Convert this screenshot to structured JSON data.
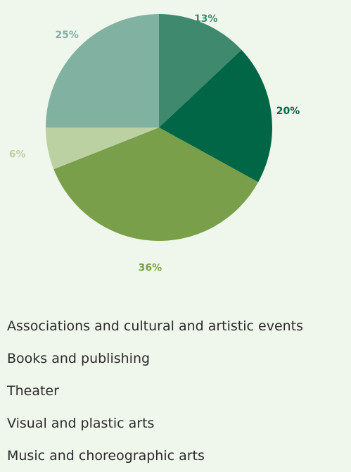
{
  "chart_data": {
    "type": "pie",
    "title": "",
    "slices": [
      {
        "label": "Associations and cultural and artistic events",
        "value": 13,
        "display": "13%",
        "color": "#3f8a6f"
      },
      {
        "label": "Books and publishing",
        "value": 20,
        "display": "20%",
        "color": "#006645"
      },
      {
        "label": "Theater",
        "value": 36,
        "display": "36%",
        "color": "#7a9f4b"
      },
      {
        "label": "Visual and plastic arts",
        "value": 6,
        "display": "6%",
        "color": "#bbd1a2"
      },
      {
        "label": "Music and choreographic arts",
        "value": 25,
        "display": "25%",
        "color": "#80b1a1"
      }
    ],
    "legend_placement": "bottom"
  },
  "legend": [
    "Associations and cultural and artistic events",
    "Books and publishing",
    "Theater",
    "Visual and plastic arts",
    "Music and choreographic arts"
  ]
}
